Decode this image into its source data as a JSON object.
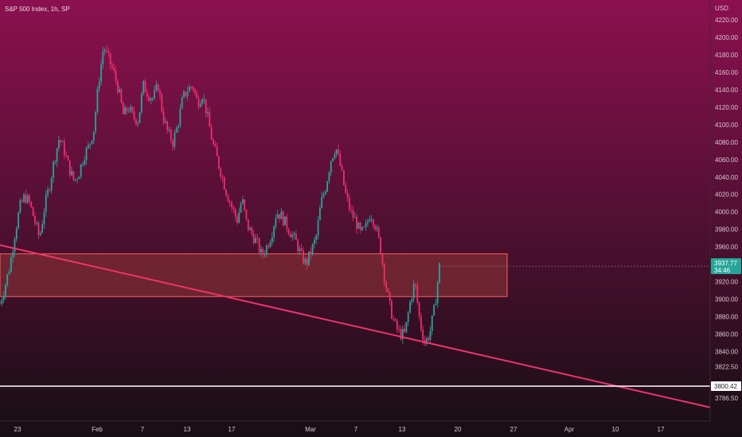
{
  "header": {
    "title": "S&P 500 Index, 1h, SP",
    "currency": "USD"
  },
  "colors": {
    "bg_top": "#8c1050",
    "bg_bottom": "#170f14",
    "up": "#26a69a",
    "down": "#ef2d6e",
    "trendline": "#f0336c",
    "zone_fill": "#a33d3a",
    "zone_stroke": "#ff5d5d",
    "support_line": "#ffffff",
    "price_badge": "#26a69a",
    "support_badge": "#ffffff"
  },
  "price_axis": {
    "labels": [
      "4220.00",
      "4200.00",
      "4180.00",
      "4160.00",
      "4140.00",
      "4120.00",
      "4100.00",
      "4080.00",
      "4060.00",
      "4040.00",
      "4020.00",
      "4000.00",
      "3980.00",
      "3960.00",
      "3920.00",
      "3900.00",
      "3880.00",
      "3860.00",
      "3840.00",
      "3822.50",
      "3786.50"
    ],
    "values": [
      4220,
      4200,
      4180,
      4160,
      4140,
      4120,
      4100,
      4080,
      4060,
      4040,
      4020,
      4000,
      3980,
      3960,
      3920,
      3900,
      3880,
      3860,
      3840,
      3822.5,
      3786.5
    ]
  },
  "time_axis": {
    "labels": [
      "23",
      "Feb",
      "7",
      "13",
      "17",
      "Mar",
      "7",
      "13",
      "20",
      "27",
      "Apr",
      "10",
      "17"
    ]
  },
  "current_price": {
    "value": "3937.77",
    "countdown": "34:46"
  },
  "support_price": {
    "value": "3800.42"
  },
  "chart_data": {
    "type": "candlestick",
    "title": "S&P 500 Index, 1h, SP",
    "ylim": [
      3782,
      4232
    ],
    "y_unit": "USD",
    "zone": {
      "top": 3952,
      "bottom": 3903,
      "start": "23",
      "end": "27"
    },
    "support_level": 3800.42,
    "trendline": {
      "from_price": 3962,
      "to_price": 3776
    },
    "close_path": [
      3895,
      3915,
      3938,
      3975,
      4005,
      4018,
      4010,
      3990,
      3970,
      4005,
      4030,
      4060,
      4085,
      4070,
      4050,
      4035,
      4045,
      4065,
      4075,
      4095,
      4150,
      4190,
      4175,
      4160,
      4140,
      4110,
      4120,
      4108,
      4105,
      4145,
      4135,
      4130,
      4145,
      4110,
      4090,
      4080,
      4100,
      4130,
      4140,
      4145,
      4125,
      4135,
      4110,
      4080,
      4060,
      4040,
      4020,
      4005,
      3990,
      4015,
      3985,
      3975,
      3965,
      3950,
      3960,
      3975,
      4000,
      3995,
      3985,
      3975,
      3965,
      3950,
      3940,
      3955,
      3970,
      4010,
      4030,
      4060,
      4075,
      4050,
      4020,
      4000,
      3990,
      3975,
      3980,
      4000,
      3985,
      3960,
      3920,
      3890,
      3870,
      3860,
      3860,
      3895,
      3920,
      3875,
      3850,
      3860,
      3890,
      3937.77
    ],
    "series": [
      {
        "name": "S&P 500 Index",
        "last": 3937.77
      }
    ]
  }
}
